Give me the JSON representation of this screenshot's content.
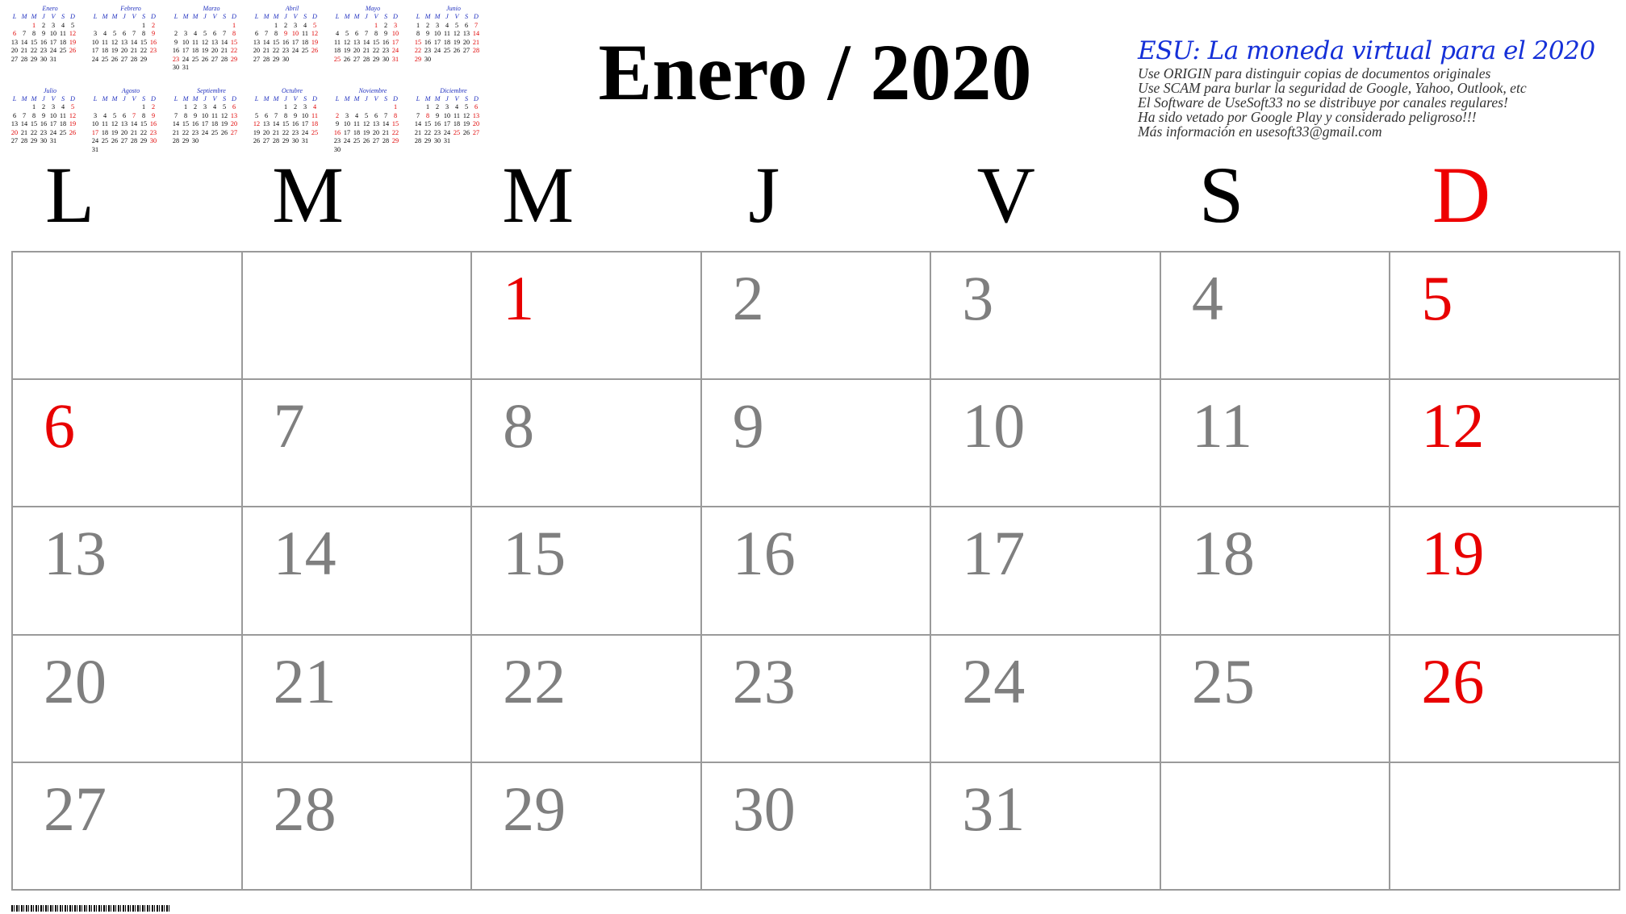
{
  "header": {
    "month_title": "Enero / 2020"
  },
  "promo": {
    "headline": "ESU: La moneda virtual para el 2020",
    "lines": [
      "Use ORIGIN para distinguir copias de documentos originales",
      "Use SCAM para burlar la seguridad de Google, Yahoo, Outlook, etc",
      "El Software de UseSoft33 no se distribuye por canales regulares!",
      "Ha sido vetado por Google Play y considerado peligroso!!!",
      "Más información en usesoft33@gmail.com"
    ],
    "colors": {
      "headline": "#1530d8",
      "body": "#333333"
    }
  },
  "weekdays": [
    "L",
    "M",
    "M",
    "J",
    "V",
    "S",
    "D"
  ],
  "colors": {
    "holiday": "#e80000",
    "day_number": "#7f7f7f",
    "grid_line": "#9a9a9a",
    "mini_header": "#1f2fbf"
  },
  "month_grid": {
    "weeks": [
      [
        {
          "day": ""
        },
        {
          "day": ""
        },
        {
          "day": "1",
          "red": true
        },
        {
          "day": "2"
        },
        {
          "day": "3"
        },
        {
          "day": "4"
        },
        {
          "day": "5",
          "red": true
        }
      ],
      [
        {
          "day": "6",
          "red": true
        },
        {
          "day": "7"
        },
        {
          "day": "8"
        },
        {
          "day": "9"
        },
        {
          "day": "10"
        },
        {
          "day": "11"
        },
        {
          "day": "12",
          "red": true
        }
      ],
      [
        {
          "day": "13"
        },
        {
          "day": "14"
        },
        {
          "day": "15"
        },
        {
          "day": "16"
        },
        {
          "day": "17"
        },
        {
          "day": "18"
        },
        {
          "day": "19",
          "red": true
        }
      ],
      [
        {
          "day": "20"
        },
        {
          "day": "21"
        },
        {
          "day": "22"
        },
        {
          "day": "23"
        },
        {
          "day": "24"
        },
        {
          "day": "25"
        },
        {
          "day": "26",
          "red": true
        }
      ],
      [
        {
          "day": "27"
        },
        {
          "day": "28"
        },
        {
          "day": "29"
        },
        {
          "day": "30"
        },
        {
          "day": "31"
        },
        {
          "day": ""
        },
        {
          "day": ""
        }
      ]
    ]
  },
  "mini_year": {
    "weekday_header": [
      "L",
      "M",
      "M",
      "J",
      "V",
      "S",
      "D"
    ],
    "months": [
      {
        "name": "Enero",
        "weeks": [
          [
            "",
            "",
            "1",
            "2",
            "3",
            "4",
            "5"
          ],
          [
            "6",
            "7",
            "8",
            "9",
            "10",
            "11",
            "12"
          ],
          [
            "13",
            "14",
            "15",
            "16",
            "17",
            "18",
            "19"
          ],
          [
            "20",
            "21",
            "22",
            "23",
            "24",
            "25",
            "26"
          ],
          [
            "27",
            "28",
            "29",
            "30",
            "31",
            "",
            ""
          ]
        ],
        "red": [
          "1",
          "6",
          "12",
          "19",
          "26"
        ]
      },
      {
        "name": "Febrero",
        "weeks": [
          [
            "",
            "",
            "",
            "",
            "",
            "1",
            "2"
          ],
          [
            "3",
            "4",
            "5",
            "6",
            "7",
            "8",
            "9"
          ],
          [
            "10",
            "11",
            "12",
            "13",
            "14",
            "15",
            "16"
          ],
          [
            "17",
            "18",
            "19",
            "20",
            "21",
            "22",
            "23"
          ],
          [
            "24",
            "25",
            "26",
            "27",
            "28",
            "29",
            ""
          ]
        ],
        "red": [
          "2",
          "9",
          "16",
          "23"
        ]
      },
      {
        "name": "Marzo",
        "weeks": [
          [
            "",
            "",
            "",
            "",
            "",
            "",
            "1"
          ],
          [
            "2",
            "3",
            "4",
            "5",
            "6",
            "7",
            "8"
          ],
          [
            "9",
            "10",
            "11",
            "12",
            "13",
            "14",
            "15"
          ],
          [
            "16",
            "17",
            "18",
            "19",
            "20",
            "21",
            "22"
          ],
          [
            "23",
            "24",
            "25",
            "26",
            "27",
            "28",
            "29"
          ],
          [
            "30",
            "31",
            "",
            "",
            "",
            "",
            ""
          ]
        ],
        "red": [
          "1",
          "8",
          "15",
          "22",
          "23",
          "29"
        ]
      },
      {
        "name": "Abril",
        "weeks": [
          [
            "",
            "",
            "1",
            "2",
            "3",
            "4",
            "5"
          ],
          [
            "6",
            "7",
            "8",
            "9",
            "10",
            "11",
            "12"
          ],
          [
            "13",
            "14",
            "15",
            "16",
            "17",
            "18",
            "19"
          ],
          [
            "20",
            "21",
            "22",
            "23",
            "24",
            "25",
            "26"
          ],
          [
            "27",
            "28",
            "29",
            "30",
            "",
            "",
            ""
          ]
        ],
        "red": [
          "5",
          "9",
          "10",
          "12",
          "19",
          "26"
        ]
      },
      {
        "name": "Mayo",
        "weeks": [
          [
            "",
            "",
            "",
            "",
            "1",
            "2",
            "3"
          ],
          [
            "4",
            "5",
            "6",
            "7",
            "8",
            "9",
            "10"
          ],
          [
            "11",
            "12",
            "13",
            "14",
            "15",
            "16",
            "17"
          ],
          [
            "18",
            "19",
            "20",
            "21",
            "22",
            "23",
            "24"
          ],
          [
            "25",
            "26",
            "27",
            "28",
            "29",
            "30",
            "31"
          ]
        ],
        "red": [
          "1",
          "3",
          "10",
          "17",
          "24",
          "25",
          "31"
        ]
      },
      {
        "name": "Junio",
        "weeks": [
          [
            "1",
            "2",
            "3",
            "4",
            "5",
            "6",
            "7"
          ],
          [
            "8",
            "9",
            "10",
            "11",
            "12",
            "13",
            "14"
          ],
          [
            "15",
            "16",
            "17",
            "18",
            "19",
            "20",
            "21"
          ],
          [
            "22",
            "23",
            "24",
            "25",
            "26",
            "27",
            "28"
          ],
          [
            "29",
            "30",
            "",
            "",
            "",
            "",
            ""
          ]
        ],
        "red": [
          "7",
          "14",
          "15",
          "21",
          "22",
          "28",
          "29"
        ]
      },
      {
        "name": "Julio",
        "weeks": [
          [
            "",
            "",
            "1",
            "2",
            "3",
            "4",
            "5"
          ],
          [
            "6",
            "7",
            "8",
            "9",
            "10",
            "11",
            "12"
          ],
          [
            "13",
            "14",
            "15",
            "16",
            "17",
            "18",
            "19"
          ],
          [
            "20",
            "21",
            "22",
            "23",
            "24",
            "25",
            "26"
          ],
          [
            "27",
            "28",
            "29",
            "30",
            "31",
            "",
            ""
          ]
        ],
        "red": [
          "5",
          "12",
          "19",
          "20",
          "26"
        ]
      },
      {
        "name": "Agosto",
        "weeks": [
          [
            "",
            "",
            "",
            "",
            "",
            "1",
            "2"
          ],
          [
            "3",
            "4",
            "5",
            "6",
            "7",
            "8",
            "9"
          ],
          [
            "10",
            "11",
            "12",
            "13",
            "14",
            "15",
            "16"
          ],
          [
            "17",
            "18",
            "19",
            "20",
            "21",
            "22",
            "23"
          ],
          [
            "24",
            "25",
            "26",
            "27",
            "28",
            "29",
            "30"
          ],
          [
            "31",
            "",
            "",
            "",
            "",
            "",
            ""
          ]
        ],
        "red": [
          "2",
          "7",
          "9",
          "16",
          "17",
          "23",
          "30"
        ]
      },
      {
        "name": "Septiembre",
        "weeks": [
          [
            "",
            "1",
            "2",
            "3",
            "4",
            "5",
            "6"
          ],
          [
            "7",
            "8",
            "9",
            "10",
            "11",
            "12",
            "13"
          ],
          [
            "14",
            "15",
            "16",
            "17",
            "18",
            "19",
            "20"
          ],
          [
            "21",
            "22",
            "23",
            "24",
            "25",
            "26",
            "27"
          ],
          [
            "28",
            "29",
            "30",
            "",
            "",
            "",
            ""
          ]
        ],
        "red": [
          "6",
          "13",
          "20",
          "27"
        ]
      },
      {
        "name": "Octubre",
        "weeks": [
          [
            "",
            "",
            "",
            "1",
            "2",
            "3",
            "4"
          ],
          [
            "5",
            "6",
            "7",
            "8",
            "9",
            "10",
            "11"
          ],
          [
            "12",
            "13",
            "14",
            "15",
            "16",
            "17",
            "18"
          ],
          [
            "19",
            "20",
            "21",
            "22",
            "23",
            "24",
            "25"
          ],
          [
            "26",
            "27",
            "28",
            "29",
            "30",
            "31",
            ""
          ]
        ],
        "red": [
          "4",
          "11",
          "12",
          "18",
          "25"
        ]
      },
      {
        "name": "Noviembre",
        "weeks": [
          [
            "",
            "",
            "",
            "",
            "",
            "",
            "1"
          ],
          [
            "2",
            "3",
            "4",
            "5",
            "6",
            "7",
            "8"
          ],
          [
            "9",
            "10",
            "11",
            "12",
            "13",
            "14",
            "15"
          ],
          [
            "16",
            "17",
            "18",
            "19",
            "20",
            "21",
            "22"
          ],
          [
            "23",
            "24",
            "25",
            "26",
            "27",
            "28",
            "29"
          ],
          [
            "30",
            "",
            "",
            "",
            "",
            "",
            ""
          ]
        ],
        "red": [
          "1",
          "2",
          "8",
          "15",
          "16",
          "22",
          "29"
        ]
      },
      {
        "name": "Diciembre",
        "weeks": [
          [
            "",
            "1",
            "2",
            "3",
            "4",
            "5",
            "6"
          ],
          [
            "7",
            "8",
            "9",
            "10",
            "11",
            "12",
            "13"
          ],
          [
            "14",
            "15",
            "16",
            "17",
            "18",
            "19",
            "20"
          ],
          [
            "21",
            "22",
            "23",
            "24",
            "25",
            "26",
            "27"
          ],
          [
            "28",
            "29",
            "30",
            "31",
            "",
            "",
            ""
          ]
        ],
        "red": [
          "6",
          "8",
          "13",
          "20",
          "25",
          "27"
        ]
      }
    ]
  }
}
